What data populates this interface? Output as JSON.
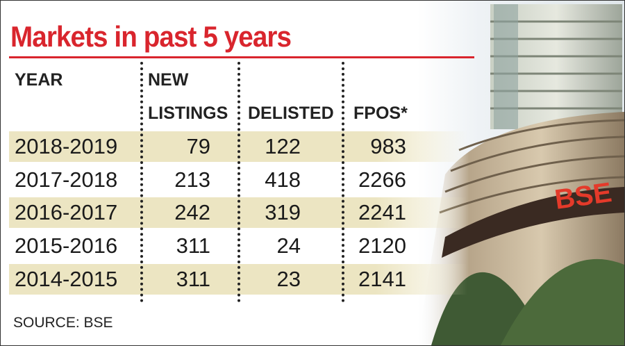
{
  "title": "Markets in past 5 years",
  "table": {
    "header": [
      "YEAR",
      "NEW\nLISTINGS",
      "DELISTED",
      "FPOS*"
    ],
    "rows": [
      [
        "2018-2019",
        79,
        122,
        983
      ],
      [
        "2017-2018",
        213,
        418,
        2266
      ],
      [
        "2016-2017",
        242,
        319,
        2241
      ],
      [
        "2015-2016",
        311,
        24,
        2120
      ],
      [
        "2014-2015",
        311,
        23,
        2141
      ]
    ]
  },
  "source": "SOURCE: BSE",
  "sign": "BSE"
}
